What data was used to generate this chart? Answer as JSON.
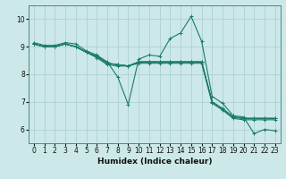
{
  "xlabel": "Humidex (Indice chaleur)",
  "xlim": [
    -0.5,
    23.5
  ],
  "ylim": [
    5.5,
    10.5
  ],
  "xticks": [
    0,
    1,
    2,
    3,
    4,
    5,
    6,
    7,
    8,
    9,
    10,
    11,
    12,
    13,
    14,
    15,
    16,
    17,
    18,
    19,
    20,
    21,
    22,
    23
  ],
  "yticks": [
    6,
    7,
    8,
    9,
    10
  ],
  "bg_color": "#cce8e8",
  "grid_color": "#aacccc",
  "line_color": "#1a7a6a",
  "lines": [
    {
      "x": [
        0,
        1,
        2,
        3,
        4,
        5,
        6,
        7,
        8,
        9,
        10,
        11,
        12,
        13,
        14,
        15,
        16,
        17,
        18,
        19,
        20,
        21,
        22,
        23
      ],
      "y": [
        9.15,
        9.05,
        9.05,
        9.15,
        9.1,
        8.85,
        8.7,
        8.45,
        7.9,
        6.9,
        8.55,
        8.7,
        8.65,
        9.3,
        9.5,
        10.1,
        9.2,
        7.2,
        6.95,
        6.5,
        6.45,
        5.85,
        6.0,
        5.95
      ]
    },
    {
      "x": [
        0,
        1,
        2,
        3,
        4,
        5,
        6,
        7,
        8,
        9,
        10,
        11,
        12,
        13,
        14,
        15,
        16,
        17,
        18,
        19,
        20,
        21,
        22,
        23
      ],
      "y": [
        9.1,
        9.0,
        9.0,
        9.1,
        9.0,
        8.8,
        8.65,
        8.4,
        8.35,
        8.3,
        8.45,
        8.45,
        8.45,
        8.45,
        8.45,
        8.45,
        8.45,
        7.0,
        6.75,
        6.45,
        6.4,
        6.4,
        6.4,
        6.4
      ]
    },
    {
      "x": [
        0,
        1,
        2,
        3,
        4,
        5,
        6,
        7,
        8,
        9,
        10,
        11,
        12,
        13,
        14,
        15,
        16,
        17,
        18,
        19,
        20,
        21,
        22,
        23
      ],
      "y": [
        9.1,
        9.0,
        9.0,
        9.1,
        9.0,
        8.8,
        8.65,
        8.4,
        8.35,
        8.3,
        8.45,
        8.45,
        8.45,
        8.45,
        8.45,
        8.45,
        8.45,
        7.0,
        6.75,
        6.45,
        6.4,
        6.4,
        6.4,
        6.4
      ]
    },
    {
      "x": [
        0,
        1,
        2,
        3,
        4,
        5,
        6,
        7,
        8,
        9,
        10,
        11,
        12,
        13,
        14,
        15,
        16,
        17,
        18,
        19,
        20,
        21,
        22,
        23
      ],
      "y": [
        9.1,
        9.0,
        9.0,
        9.1,
        9.0,
        8.8,
        8.65,
        8.4,
        8.35,
        8.3,
        8.45,
        8.45,
        8.45,
        8.45,
        8.45,
        8.45,
        8.45,
        7.0,
        6.75,
        6.45,
        6.4,
        6.4,
        6.4,
        6.4
      ]
    },
    {
      "x": [
        0,
        1,
        2,
        3,
        4,
        5,
        6,
        7,
        8,
        9,
        10,
        11,
        12,
        13,
        14,
        15,
        16,
        17,
        18,
        19,
        20,
        21,
        22,
        23
      ],
      "y": [
        9.1,
        9.0,
        9.0,
        9.1,
        9.0,
        8.8,
        8.6,
        8.35,
        8.3,
        8.3,
        8.4,
        8.4,
        8.4,
        8.4,
        8.4,
        8.4,
        8.4,
        6.95,
        6.7,
        6.4,
        6.35,
        6.35,
        6.35,
        6.35
      ]
    }
  ]
}
